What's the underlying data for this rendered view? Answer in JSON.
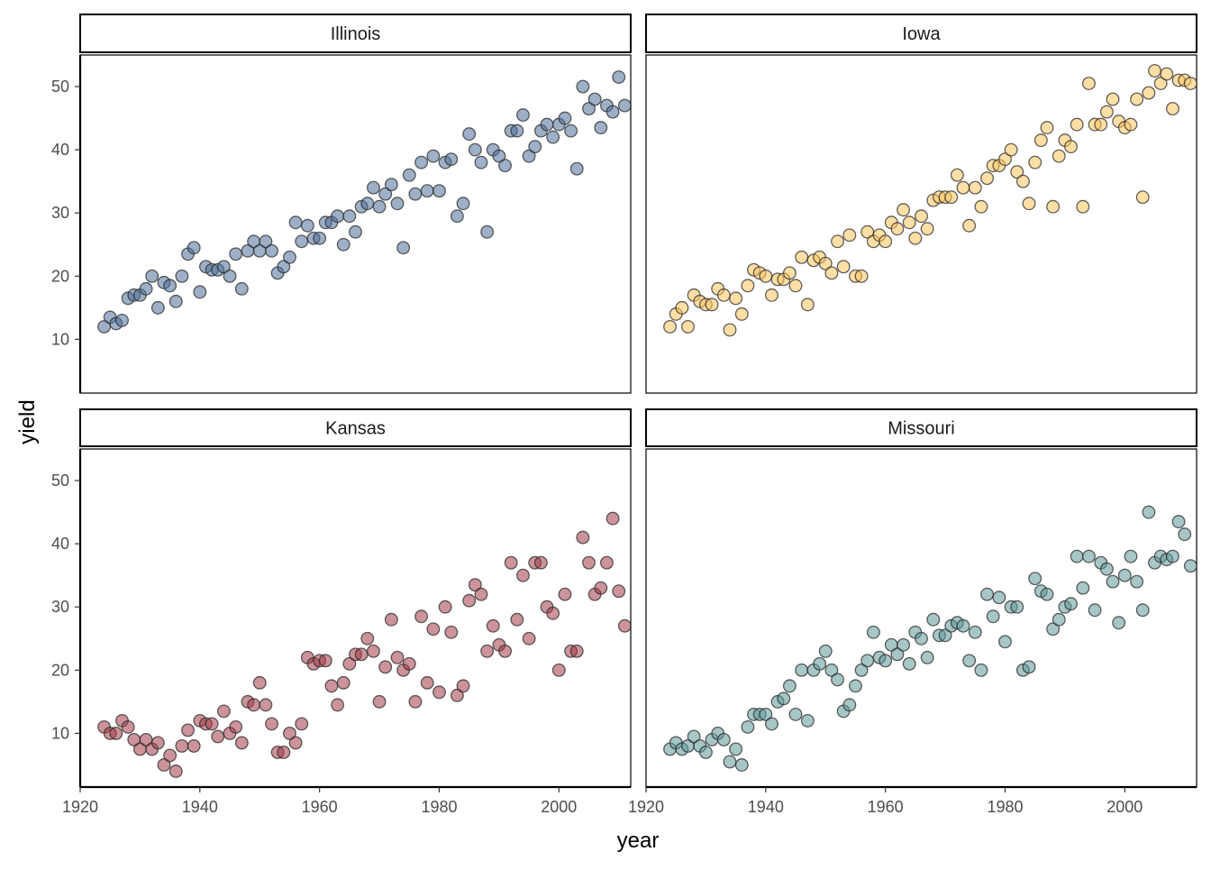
{
  "chart_data": {
    "type": "scatter",
    "xlabel": "year",
    "ylabel": "yield",
    "xlim": [
      1920,
      2012
    ],
    "ylim": [
      1.5,
      55
    ],
    "x_ticks": [
      1920,
      1940,
      1960,
      1980,
      2000
    ],
    "x_tick_labels": [
      "1920",
      "1940",
      "1960",
      "1980",
      "2000"
    ],
    "y_ticks": [
      10,
      20,
      30,
      40,
      50
    ],
    "y_tick_labels": [
      "10",
      "20",
      "30",
      "40",
      "50"
    ],
    "facet_layout": "2x2",
    "grid": false,
    "legend": "none",
    "marker_opacity": 0.55,
    "marker_edge_color": "#2b2b2b",
    "facets": [
      {
        "label": "Illinois",
        "color": "#4d6f99",
        "x": [
          1924,
          1925,
          1926,
          1927,
          1928,
          1929,
          1930,
          1931,
          1932,
          1933,
          1934,
          1935,
          1936,
          1937,
          1938,
          1939,
          1940,
          1941,
          1942,
          1943,
          1944,
          1945,
          1946,
          1947,
          1948,
          1949,
          1950,
          1951,
          1952,
          1953,
          1954,
          1955,
          1956,
          1957,
          1958,
          1959,
          1960,
          1961,
          1962,
          1963,
          1964,
          1965,
          1966,
          1967,
          1968,
          1969,
          1970,
          1971,
          1972,
          1973,
          1974,
          1975,
          1976,
          1977,
          1978,
          1979,
          1980,
          1981,
          1982,
          1983,
          1984,
          1985,
          1986,
          1987,
          1988,
          1989,
          1990,
          1991,
          1992,
          1993,
          1994,
          1995,
          1996,
          1997,
          1998,
          1999,
          2000,
          2001,
          2002,
          2003,
          2004,
          2005,
          2006,
          2007,
          2008,
          2009,
          2010,
          2011
        ],
        "y": [
          12,
          13.5,
          12.5,
          13,
          16.5,
          17,
          17,
          18,
          20,
          15,
          19,
          18.5,
          16,
          20,
          23.5,
          24.5,
          17.5,
          21.5,
          21,
          21,
          21.5,
          20,
          23.5,
          18,
          24,
          25.5,
          24,
          25.5,
          24,
          20.5,
          21.5,
          23,
          28.5,
          25.5,
          28,
          26,
          26,
          28.5,
          28.5,
          29.5,
          25,
          29.5,
          27,
          31,
          31.5,
          34,
          31,
          33,
          34.5,
          31.5,
          24.5,
          36,
          33,
          38,
          33.5,
          39,
          33.5,
          38,
          38.5,
          29.5,
          31.5,
          42.5,
          40,
          38,
          27,
          40,
          39,
          37.5,
          43,
          43,
          45.5,
          39,
          40.5,
          43,
          44,
          42,
          44,
          45,
          43,
          37,
          50,
          46.5,
          48,
          43.5,
          47,
          46,
          51.5,
          47
        ]
      },
      {
        "label": "Iowa",
        "color": "#ffc55c",
        "x": [
          1924,
          1925,
          1926,
          1927,
          1928,
          1929,
          1930,
          1931,
          1932,
          1933,
          1934,
          1935,
          1936,
          1937,
          1938,
          1939,
          1940,
          1941,
          1942,
          1943,
          1944,
          1945,
          1946,
          1947,
          1948,
          1949,
          1950,
          1951,
          1952,
          1953,
          1954,
          1955,
          1956,
          1957,
          1958,
          1959,
          1960,
          1961,
          1962,
          1963,
          1964,
          1965,
          1966,
          1967,
          1968,
          1969,
          1970,
          1971,
          1972,
          1973,
          1974,
          1975,
          1976,
          1977,
          1978,
          1979,
          1980,
          1981,
          1982,
          1983,
          1984,
          1985,
          1986,
          1987,
          1988,
          1989,
          1990,
          1991,
          1992,
          1993,
          1994,
          1995,
          1996,
          1997,
          1998,
          1999,
          2000,
          2001,
          2002,
          2003,
          2004,
          2005,
          2006,
          2007,
          2008,
          2009,
          2010,
          2011
        ],
        "y": [
          12,
          14,
          15,
          12,
          17,
          16,
          15.5,
          15.5,
          18,
          17,
          11.5,
          16.5,
          14,
          18.5,
          21,
          20.5,
          20,
          17,
          19.5,
          19.5,
          20.5,
          18.5,
          23,
          15.5,
          22.5,
          23,
          22,
          20.5,
          25.5,
          21.5,
          26.5,
          20,
          20,
          27,
          25.5,
          26.5,
          25.5,
          28.5,
          27.5,
          30.5,
          28.5,
          26,
          29.5,
          27.5,
          32,
          32.5,
          32.5,
          32.5,
          36,
          34,
          28,
          34,
          31,
          35.5,
          37.5,
          37.5,
          38.5,
          40,
          36.5,
          35,
          31.5,
          38,
          41.5,
          43.5,
          31,
          39,
          41.5,
          40.5,
          44,
          31,
          50.5,
          44,
          44,
          46,
          48,
          44.5,
          43.5,
          44,
          48,
          32.5,
          49,
          52.5,
          50.5,
          52,
          46.5,
          51,
          51,
          50.5
        ]
      },
      {
        "label": "Kansas",
        "color": "#a33a47",
        "x": [
          1924,
          1925,
          1926,
          1927,
          1928,
          1929,
          1930,
          1931,
          1932,
          1933,
          1934,
          1935,
          1936,
          1937,
          1938,
          1939,
          1940,
          1941,
          1942,
          1943,
          1944,
          1945,
          1946,
          1947,
          1948,
          1949,
          1950,
          1951,
          1952,
          1953,
          1954,
          1955,
          1956,
          1957,
          1958,
          1959,
          1960,
          1961,
          1962,
          1963,
          1964,
          1965,
          1966,
          1967,
          1968,
          1969,
          1970,
          1971,
          1972,
          1973,
          1974,
          1975,
          1976,
          1977,
          1978,
          1979,
          1980,
          1981,
          1982,
          1983,
          1984,
          1985,
          1986,
          1987,
          1988,
          1989,
          1990,
          1991,
          1992,
          1993,
          1994,
          1995,
          1996,
          1997,
          1998,
          1999,
          2000,
          2001,
          2002,
          2003,
          2004,
          2005,
          2006,
          2007,
          2008,
          2009,
          2010,
          2011
        ],
        "y": [
          11,
          10,
          10,
          12,
          11,
          9,
          7.5,
          9,
          7.5,
          8.5,
          5,
          6.5,
          4,
          8,
          10.5,
          8,
          12,
          11.5,
          11.5,
          9.5,
          13.5,
          10,
          11,
          8.5,
          15,
          14.5,
          18,
          14.5,
          11.5,
          7,
          7,
          10,
          8.5,
          11.5,
          22,
          21,
          21.5,
          21.5,
          17.5,
          14.5,
          18,
          21,
          22.5,
          22.5,
          25,
          23,
          15,
          20.5,
          28,
          22,
          20,
          21,
          15,
          28.5,
          18,
          26.5,
          16.5,
          30,
          26,
          16,
          17.5,
          31,
          33.5,
          32,
          23,
          27,
          24,
          23,
          37,
          28,
          35,
          25,
          37,
          37,
          30,
          29,
          20,
          32,
          23,
          23,
          41,
          37,
          32,
          33,
          37,
          44,
          32.5,
          27
        ]
      },
      {
        "label": "Missouri",
        "color": "#5f9898",
        "x": [
          1924,
          1925,
          1926,
          1927,
          1928,
          1929,
          1930,
          1931,
          1932,
          1933,
          1934,
          1935,
          1936,
          1937,
          1938,
          1939,
          1940,
          1941,
          1942,
          1943,
          1944,
          1945,
          1946,
          1947,
          1948,
          1949,
          1950,
          1951,
          1952,
          1953,
          1954,
          1955,
          1956,
          1957,
          1958,
          1959,
          1960,
          1961,
          1962,
          1963,
          1964,
          1965,
          1966,
          1967,
          1968,
          1969,
          1970,
          1971,
          1972,
          1973,
          1974,
          1975,
          1976,
          1977,
          1978,
          1979,
          1980,
          1981,
          1982,
          1983,
          1984,
          1985,
          1986,
          1987,
          1988,
          1989,
          1990,
          1991,
          1992,
          1993,
          1994,
          1995,
          1996,
          1997,
          1998,
          1999,
          2000,
          2001,
          2002,
          2003,
          2004,
          2005,
          2006,
          2007,
          2008,
          2009,
          2010,
          2011
        ],
        "y": [
          7.5,
          8.5,
          7.5,
          8,
          9.5,
          8,
          7,
          9,
          10,
          9,
          5.5,
          7.5,
          5,
          11,
          13,
          13,
          13,
          11.5,
          15,
          15.5,
          17.5,
          13,
          20,
          12,
          20,
          21,
          23,
          20,
          18.5,
          13.5,
          14.5,
          17.5,
          20,
          21.5,
          26,
          22,
          21.5,
          24,
          22.5,
          24,
          21,
          26,
          25,
          22,
          28,
          25.5,
          25.5,
          27,
          27.5,
          27,
          21.5,
          26,
          20,
          32,
          28.5,
          31.5,
          24.5,
          30,
          30,
          20,
          20.5,
          34.5,
          32.5,
          32,
          26.5,
          28,
          30,
          30.5,
          38,
          33,
          38,
          29.5,
          37,
          36,
          34,
          27.5,
          35,
          38,
          34,
          29.5,
          45,
          37,
          38,
          37.5,
          38,
          43.5,
          41.5,
          36.5
        ]
      }
    ]
  }
}
